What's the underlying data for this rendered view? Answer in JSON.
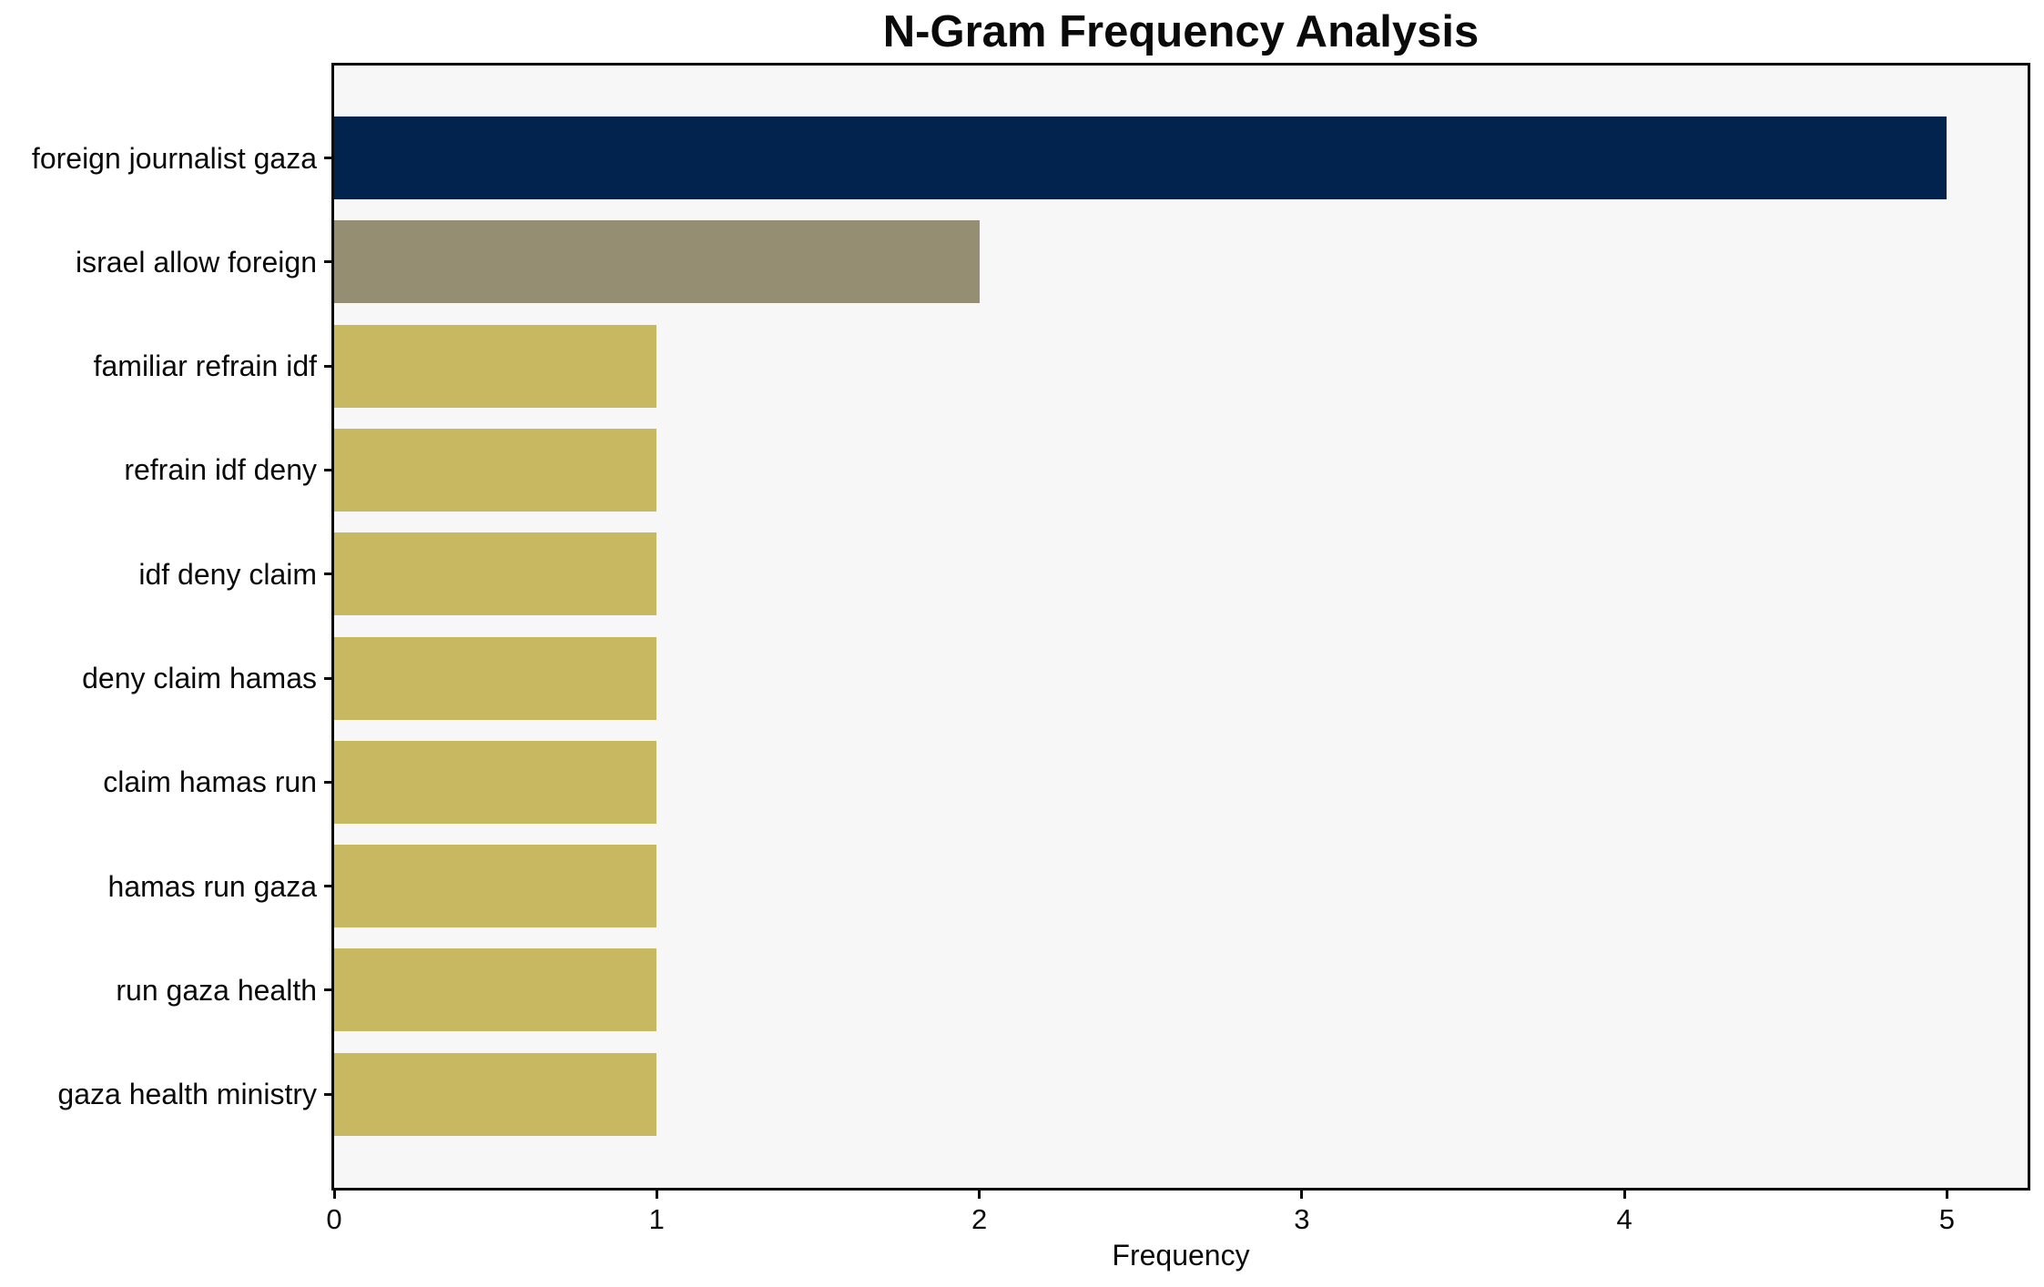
{
  "chart_data": {
    "type": "bar",
    "orientation": "horizontal",
    "title": "N-Gram Frequency Analysis",
    "xlabel": "Frequency",
    "ylabel": "",
    "categories": [
      "foreign journalist gaza",
      "israel allow foreign",
      "familiar refrain idf",
      "refrain idf deny",
      "idf deny claim",
      "deny claim hamas",
      "claim hamas run",
      "hamas run gaza",
      "run gaza health",
      "gaza health ministry"
    ],
    "values": [
      5,
      2,
      1,
      1,
      1,
      1,
      1,
      1,
      1,
      1
    ],
    "x_ticks": [
      "0",
      "1",
      "2",
      "3",
      "4",
      "5"
    ],
    "xlim": [
      0,
      5.25
    ],
    "bar_colors": [
      "#01234e",
      "#958e73",
      "#c9b862",
      "#c9b862",
      "#c9b862",
      "#c9b862",
      "#c9b862",
      "#c9b862",
      "#c9b862",
      "#c9b862"
    ],
    "colors": {
      "plot_background": "#f7f7f7",
      "figure_background": "#ffffff",
      "spine": "#0a0a0a",
      "text": "#0a0a0a"
    },
    "legend": null,
    "grid": false
  }
}
